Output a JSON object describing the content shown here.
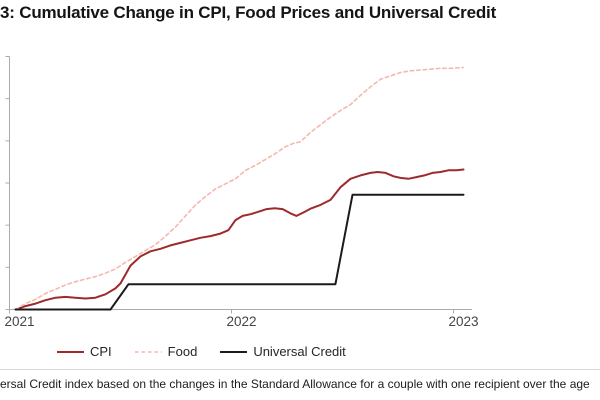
{
  "title": "3: Cumulative Change in CPI, Food Prices and Universal Credit",
  "footnote": "ersal Credit index based on the changes in the Standard Allowance for a couple with one recipient over the age",
  "axis": {
    "x_tick_labels": [
      "2021",
      "2022",
      "2023"
    ],
    "axis_color": "#ababab",
    "tick_label_color": "#454545"
  },
  "chart_data": {
    "type": "line",
    "title": "3: Cumulative Change in CPI, Food Prices and Universal Credit",
    "xlabel": "",
    "ylabel": "",
    "xlim": [
      2021,
      2023.09
    ],
    "ylim": [
      0,
      30
    ],
    "x_ticks": [
      {
        "value": 2021,
        "label": "2021"
      },
      {
        "value": 2022,
        "label": "2022"
      },
      {
        "value": 2023,
        "label": "2023"
      }
    ],
    "y_ticks": {
      "values": [
        0,
        5,
        10,
        15,
        20,
        25,
        30
      ],
      "labels_visible": false
    },
    "grid": false,
    "legend_position": "bottom",
    "series": [
      {
        "name": "CPI",
        "color": "#9e2a2b",
        "dash": "solid",
        "width": 2,
        "points": [
          [
            2021.027,
            0
          ],
          [
            2021.072,
            0.4
          ],
          [
            2021.117,
            0.7
          ],
          [
            2021.162,
            1.1
          ],
          [
            2021.207,
            1.4
          ],
          [
            2021.252,
            1.5
          ],
          [
            2021.297,
            1.4
          ],
          [
            2021.342,
            1.3
          ],
          [
            2021.387,
            1.4
          ],
          [
            2021.432,
            1.8
          ],
          [
            2021.477,
            2.5
          ],
          [
            2021.5,
            3.1
          ],
          [
            2021.545,
            5.2
          ],
          [
            2021.59,
            6.3
          ],
          [
            2021.635,
            6.9
          ],
          [
            2021.68,
            7.2
          ],
          [
            2021.725,
            7.6
          ],
          [
            2021.77,
            7.9
          ],
          [
            2021.815,
            8.2
          ],
          [
            2021.86,
            8.5
          ],
          [
            2021.905,
            8.7
          ],
          [
            2021.95,
            9.0
          ],
          [
            2021.986,
            9.4
          ],
          [
            2022.018,
            10.6
          ],
          [
            2022.05,
            11.1
          ],
          [
            2022.086,
            11.3
          ],
          [
            2022.122,
            11.6
          ],
          [
            2022.158,
            11.9
          ],
          [
            2022.194,
            12.0
          ],
          [
            2022.23,
            11.9
          ],
          [
            2022.266,
            11.4
          ],
          [
            2022.293,
            11.1
          ],
          [
            2022.324,
            11.5
          ],
          [
            2022.36,
            12.0
          ],
          [
            2022.401,
            12.4
          ],
          [
            2022.446,
            13.0
          ],
          [
            2022.491,
            14.5
          ],
          [
            2022.536,
            15.5
          ],
          [
            2022.581,
            15.9
          ],
          [
            2022.626,
            16.2
          ],
          [
            2022.658,
            16.3
          ],
          [
            2022.694,
            16.2
          ],
          [
            2022.73,
            15.8
          ],
          [
            2022.761,
            15.6
          ],
          [
            2022.797,
            15.5
          ],
          [
            2022.833,
            15.7
          ],
          [
            2022.869,
            15.9
          ],
          [
            2022.905,
            16.2
          ],
          [
            2022.941,
            16.3
          ],
          [
            2022.977,
            16.5
          ],
          [
            2023.014,
            16.5
          ],
          [
            2023.045,
            16.6
          ]
        ]
      },
      {
        "name": "Food",
        "color": "#f4b8ae",
        "dash": "dashed",
        "width": 1.6,
        "points": [
          [
            2021.027,
            0
          ],
          [
            2021.072,
            0.7
          ],
          [
            2021.117,
            1.2
          ],
          [
            2021.162,
            1.9
          ],
          [
            2021.207,
            2.4
          ],
          [
            2021.252,
            2.9
          ],
          [
            2021.297,
            3.3
          ],
          [
            2021.342,
            3.6
          ],
          [
            2021.387,
            3.9
          ],
          [
            2021.432,
            4.3
          ],
          [
            2021.477,
            4.8
          ],
          [
            2021.523,
            5.6
          ],
          [
            2021.568,
            6.3
          ],
          [
            2021.613,
            7.0
          ],
          [
            2021.658,
            7.7
          ],
          [
            2021.703,
            8.7
          ],
          [
            2021.748,
            9.8
          ],
          [
            2021.793,
            11.1
          ],
          [
            2021.838,
            12.4
          ],
          [
            2021.883,
            13.4
          ],
          [
            2021.928,
            14.3
          ],
          [
            2021.973,
            14.9
          ],
          [
            2022.018,
            15.5
          ],
          [
            2022.063,
            16.5
          ],
          [
            2022.108,
            17.1
          ],
          [
            2022.153,
            17.8
          ],
          [
            2022.198,
            18.5
          ],
          [
            2022.243,
            19.3
          ],
          [
            2022.279,
            19.7
          ],
          [
            2022.311,
            19.9
          ],
          [
            2022.356,
            21.0
          ],
          [
            2022.401,
            21.9
          ],
          [
            2022.446,
            22.8
          ],
          [
            2022.491,
            23.6
          ],
          [
            2022.536,
            24.3
          ],
          [
            2022.581,
            25.4
          ],
          [
            2022.626,
            26.4
          ],
          [
            2022.671,
            27.3
          ],
          [
            2022.716,
            27.7
          ],
          [
            2022.761,
            28.1
          ],
          [
            2022.806,
            28.3
          ],
          [
            2022.851,
            28.4
          ],
          [
            2022.896,
            28.5
          ],
          [
            2022.941,
            28.6
          ],
          [
            2022.986,
            28.6
          ],
          [
            2023.045,
            28.7
          ]
        ]
      },
      {
        "name": "Universal Credit",
        "color": "#1b1b1b",
        "dash": "solid",
        "width": 2,
        "points": [
          [
            2021.027,
            0
          ],
          [
            2021.455,
            0
          ],
          [
            2021.536,
            3.0
          ],
          [
            2022.468,
            3.0
          ],
          [
            2022.545,
            13.6
          ],
          [
            2023.045,
            13.6
          ]
        ]
      }
    ]
  }
}
